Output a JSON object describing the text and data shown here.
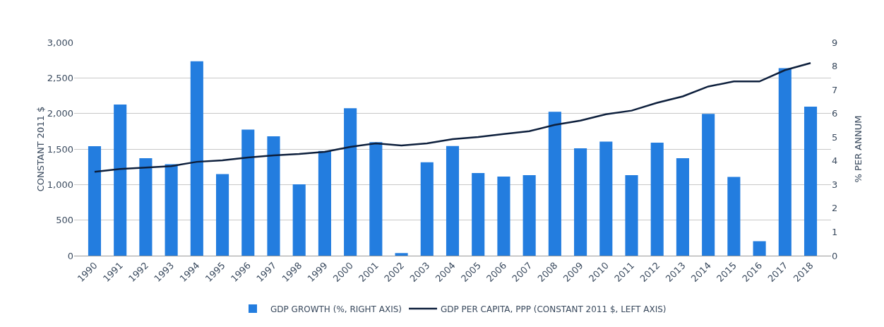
{
  "chart_data": {
    "type": "bar",
    "categories": [
      "1990",
      "1991",
      "1992",
      "1993",
      "1994",
      "1995",
      "1996",
      "1997",
      "1998",
      "1999",
      "2000",
      "2001",
      "2002",
      "2003",
      "2004",
      "2005",
      "2006",
      "2007",
      "2008",
      "2009",
      "2010",
      "2011",
      "2012",
      "2013",
      "2014",
      "2015",
      "2016",
      "2017",
      "2018"
    ],
    "series": [
      {
        "name": "GDP GROWTH (%, RIGHT AXIS)",
        "axis": "y2",
        "color": "#237ddf",
        "values": [
          4.62,
          6.38,
          4.11,
          3.86,
          8.2,
          3.44,
          5.32,
          5.04,
          3.01,
          4.42,
          6.22,
          4.79,
          0.11,
          3.94,
          4.63,
          3.49,
          3.34,
          3.4,
          6.07,
          4.53,
          4.81,
          3.4,
          4.77,
          4.11,
          5.98,
          3.32,
          0.61,
          7.91,
          6.29
        ]
      },
      {
        "name": "GDP PER CAPITA, PPP (CONSTANT 2011 $, LEFT AXIS)",
        "type": "line",
        "color": "#0d1f3c",
        "values": [
          1180,
          1220,
          1240,
          1260,
          1320,
          1340,
          1380,
          1410,
          1430,
          1460,
          1530,
          1580,
          1550,
          1580,
          1640,
          1670,
          1710,
          1750,
          1840,
          1900,
          1990,
          2040,
          2150,
          2240,
          2380,
          2450,
          2450,
          2610,
          2710
        ]
      }
    ],
    "ylabel": "CONSTANT 2011 $",
    "y2label": "% PER ANNUM",
    "ylim": [
      0,
      3000
    ],
    "yticks": [
      {
        "value": 0,
        "label": "0"
      },
      {
        "value": 500,
        "label": "500"
      },
      {
        "value": 1000,
        "label": "1,000"
      },
      {
        "value": 1500,
        "label": "1,500"
      },
      {
        "value": 2000,
        "label": "2,000"
      },
      {
        "value": 2500,
        "label": "2,500"
      },
      {
        "value": 3000,
        "label": "3,000"
      }
    ],
    "y2lim": [
      0,
      9
    ],
    "y2ticks": [
      0,
      1,
      2,
      3,
      4,
      5,
      6,
      7,
      8,
      9
    ],
    "grid": "y",
    "legend": "bottom",
    "marker": "none",
    "line_style": "solid"
  }
}
